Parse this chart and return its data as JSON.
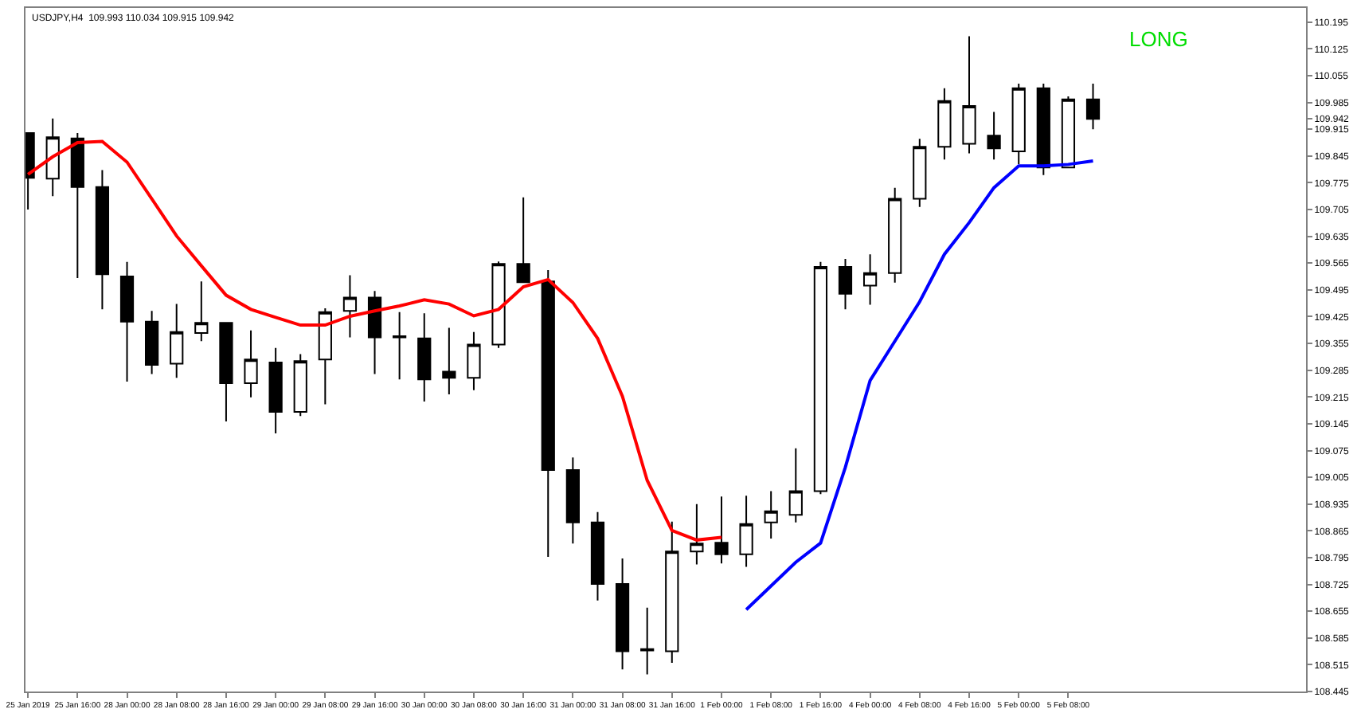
{
  "chart_data": {
    "type": "candlestick",
    "categories": [
      "25 Jan 2019",
      null,
      "25 Jan 16:00",
      null,
      "28 Jan 00:00",
      null,
      "28 Jan 08:00",
      null,
      "28 Jan 16:00",
      null,
      "29 Jan 00:00",
      null,
      "29 Jan 08:00",
      null,
      "29 Jan 16:00",
      null,
      "30 Jan 00:00",
      null,
      "30 Jan 08:00",
      null,
      "30 Jan 16:00",
      null,
      "31 Jan 00:00",
      null,
      "31 Jan 08:00",
      null,
      "31 Jan 16:00",
      null,
      "1 Feb 00:00",
      null,
      "1 Feb 08:00",
      null,
      "1 Feb 16:00",
      null,
      "4 Feb 00:00",
      null,
      "4 Feb 08:00",
      null,
      "4 Feb 16:00",
      null,
      "5 Feb 00:00",
      null,
      "5 Feb 08:00",
      null
    ],
    "ohlc": [
      [
        109.905,
        109.905,
        109.705,
        109.788
      ],
      [
        109.786,
        109.943,
        109.74,
        109.894
      ],
      [
        109.891,
        109.905,
        109.526,
        109.764
      ],
      [
        109.764,
        109.808,
        109.444,
        109.536
      ],
      [
        109.53,
        109.568,
        109.255,
        109.412
      ],
      [
        109.412,
        109.44,
        109.275,
        109.299
      ],
      [
        109.302,
        109.458,
        109.265,
        109.385
      ],
      [
        109.382,
        109.517,
        109.361,
        109.409
      ],
      [
        109.409,
        109.409,
        109.151,
        109.251
      ],
      [
        109.251,
        109.389,
        109.214,
        109.313
      ],
      [
        109.305,
        109.343,
        109.12,
        109.176
      ],
      [
        109.176,
        109.327,
        109.165,
        109.309
      ],
      [
        109.313,
        109.447,
        109.196,
        109.437
      ],
      [
        109.44,
        109.533,
        109.371,
        109.475
      ],
      [
        109.475,
        109.492,
        109.275,
        109.371
      ],
      [
        109.374,
        109.437,
        109.261,
        109.371
      ],
      [
        109.368,
        109.434,
        109.203,
        109.261
      ],
      [
        109.281,
        109.396,
        109.222,
        109.265
      ],
      [
        109.265,
        109.385,
        109.233,
        109.352
      ],
      [
        109.352,
        109.569,
        109.343,
        109.563
      ],
      [
        109.563,
        109.737,
        109.513,
        109.515
      ],
      [
        109.517,
        109.547,
        108.797,
        109.024
      ],
      [
        109.024,
        109.057,
        108.832,
        108.887
      ],
      [
        108.887,
        108.914,
        108.683,
        108.726
      ],
      [
        108.726,
        108.793,
        108.503,
        108.55
      ],
      [
        108.556,
        108.664,
        108.49,
        108.552
      ],
      [
        108.55,
        108.889,
        108.52,
        108.811
      ],
      [
        108.811,
        108.935,
        108.777,
        108.832
      ],
      [
        108.834,
        108.955,
        108.78,
        108.804
      ],
      [
        108.804,
        108.957,
        108.771,
        108.883
      ],
      [
        108.887,
        108.969,
        108.845,
        108.916
      ],
      [
        108.907,
        109.081,
        108.887,
        108.969
      ],
      [
        108.969,
        109.568,
        108.961,
        109.555
      ],
      [
        109.555,
        109.576,
        109.444,
        109.485
      ],
      [
        109.506,
        109.588,
        109.456,
        109.539
      ],
      [
        109.539,
        109.762,
        109.514,
        109.733
      ],
      [
        109.733,
        109.89,
        109.712,
        109.869
      ],
      [
        109.869,
        110.022,
        109.836,
        109.989
      ],
      [
        109.877,
        110.158,
        109.852,
        109.976
      ],
      [
        109.898,
        109.96,
        109.836,
        109.865
      ],
      [
        109.857,
        110.034,
        109.824,
        110.022
      ],
      [
        110.022,
        110.034,
        109.795,
        109.815
      ],
      [
        109.815,
        110.001,
        109.815,
        109.993
      ],
      [
        109.993,
        110.034,
        109.915,
        109.942
      ]
    ],
    "series": [
      {
        "type": "line",
        "color": "#ff0000",
        "values": [
          109.797,
          109.843,
          109.88,
          109.883,
          109.829,
          109.733,
          109.636,
          109.558,
          109.481,
          109.444,
          109.423,
          109.403,
          109.403,
          109.426,
          109.44,
          109.453,
          109.469,
          109.458,
          109.427,
          109.444,
          109.503,
          109.522,
          109.462,
          109.368,
          109.217,
          108.997,
          108.866,
          108.841,
          108.848,
          null,
          null,
          null,
          null,
          null,
          null,
          null,
          null,
          null,
          null,
          null,
          null,
          null,
          null,
          null
        ]
      },
      {
        "type": "line",
        "color": "#0000ff",
        "values": [
          null,
          null,
          null,
          null,
          null,
          null,
          null,
          null,
          null,
          null,
          null,
          null,
          null,
          null,
          null,
          null,
          null,
          null,
          null,
          null,
          null,
          null,
          null,
          null,
          null,
          null,
          null,
          null,
          null,
          108.659,
          108.721,
          108.783,
          108.833,
          109.031,
          109.258,
          109.361,
          109.464,
          109.588,
          109.671,
          109.762,
          109.819,
          109.819,
          109.823,
          109.832
        ]
      }
    ],
    "ylim": [
      108.445,
      110.232
    ],
    "yticks": [
      108.445,
      108.515,
      108.585,
      108.655,
      108.725,
      108.795,
      108.865,
      108.935,
      109.005,
      109.075,
      109.145,
      109.215,
      109.285,
      109.355,
      109.425,
      109.495,
      109.565,
      109.635,
      109.705,
      109.775,
      109.845,
      109.915,
      109.942,
      109.985,
      110.055,
      110.125,
      110.195
    ],
    "annotations": [
      "USDJPY,H4  109.993 110.034 109.915 109.942",
      "LONG"
    ]
  }
}
